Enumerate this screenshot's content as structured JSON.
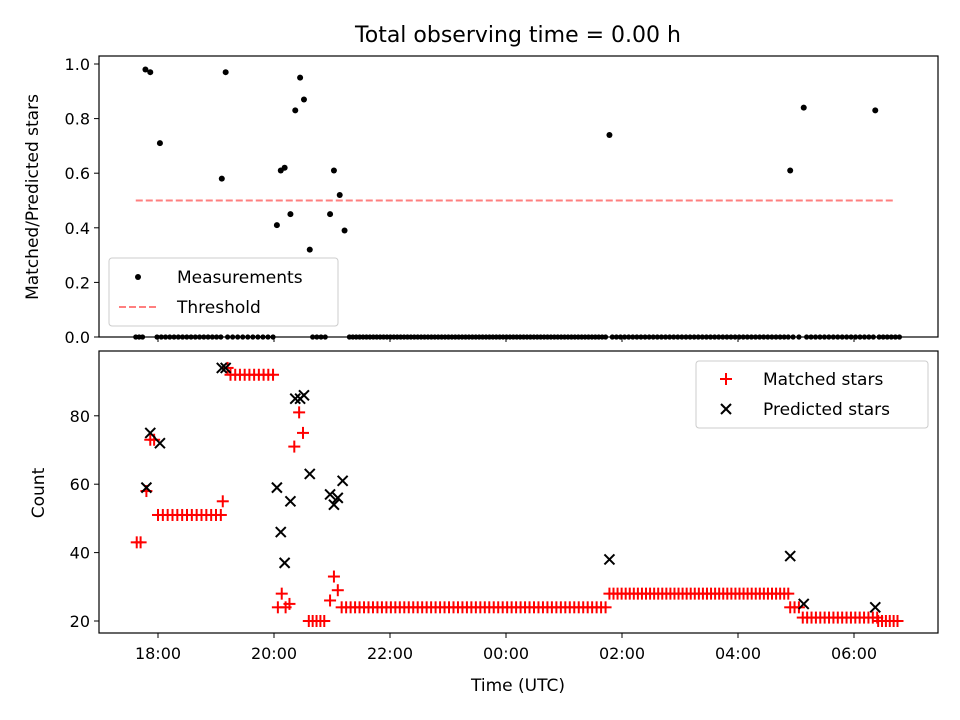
{
  "title": "Total observing time = 0.00 h",
  "colors": {
    "measurement": "#000000",
    "threshold": "#ff7f7f",
    "matched": "#ff0000",
    "predicted": "#000000"
  },
  "chart_data": [
    {
      "type": "scatter",
      "ylabel": "Matched/Predicted stars",
      "ylim": [
        0.0,
        1.04
      ],
      "yticks": [
        "0.0",
        "0.2",
        "0.4",
        "0.6",
        "0.8",
        "1.0"
      ],
      "legend_placement": "lower-left",
      "series": [
        {
          "name": "Measurements",
          "marker": "dot",
          "points": [
            [
              "17:47",
              0.98
            ],
            [
              "17:52",
              0.97
            ],
            [
              "18:02",
              0.71
            ],
            [
              "19:06",
              0.58
            ],
            [
              "19:10",
              0.97
            ],
            [
              "20:03",
              0.41
            ],
            [
              "20:07",
              0.61
            ],
            [
              "20:11",
              0.62
            ],
            [
              "20:17",
              0.45
            ],
            [
              "20:22",
              0.83
            ],
            [
              "20:27",
              0.95
            ],
            [
              "20:31",
              0.87
            ],
            [
              "20:37",
              0.32
            ],
            [
              "20:58",
              0.45
            ],
            [
              "21:02",
              0.61
            ],
            [
              "21:08",
              0.52
            ],
            [
              "21:13",
              0.39
            ],
            [
              "01:47",
              0.74
            ],
            [
              "04:54",
              0.61
            ],
            [
              "05:08",
              0.84
            ],
            [
              "06:22",
              0.83
            ]
          ],
          "zero_runs": [
            [
              "17:37",
              "17:44",
              3
            ],
            [
              "17:59",
              "19:05",
              16
            ],
            [
              "19:12",
              "19:59",
              10
            ],
            [
              "20:40",
              "20:53",
              4
            ],
            [
              "21:18",
              "01:43",
              76
            ],
            [
              "01:50",
              "04:52",
              44
            ],
            [
              "04:57",
              "05:03",
              2
            ],
            [
              "05:11",
              "06:20",
              16
            ],
            [
              "06:26",
              "06:47",
              6
            ]
          ]
        },
        {
          "name": "Threshold",
          "style": "dashed",
          "x": [
            "17:37",
            "06:42"
          ],
          "value": 0.5
        }
      ]
    },
    {
      "type": "scatter",
      "ylabel": "Count",
      "xlabel": "Time (UTC)",
      "ylim": [
        16,
        97
      ],
      "yticks": [
        "20",
        "40",
        "60",
        "80"
      ],
      "xticks": [
        "18:00",
        "20:00",
        "22:00",
        "00:00",
        "02:00",
        "04:00",
        "06:00"
      ],
      "legend_placement": "upper-right",
      "series": [
        {
          "name": "Matched stars",
          "marker": "+",
          "points": [
            [
              "17:38",
              43
            ],
            [
              "17:42",
              43
            ],
            [
              "17:48",
              58
            ],
            [
              "17:52",
              73
            ],
            [
              "17:56",
              73
            ],
            [
              "19:07",
              55
            ],
            [
              "19:12",
              94
            ],
            [
              "20:04",
              24
            ],
            [
              "20:08",
              28
            ],
            [
              "20:12",
              24
            ],
            [
              "20:16",
              25
            ],
            [
              "20:21",
              71
            ],
            [
              "20:26",
              81
            ],
            [
              "20:30",
              75
            ],
            [
              "20:58",
              26
            ],
            [
              "21:02",
              33
            ],
            [
              "21:06",
              29
            ]
          ],
          "runs": [
            [
              "18:00",
              "19:05",
              51,
              14
            ],
            [
              "19:15",
              "19:59",
              92,
              10
            ],
            [
              "20:36",
              "20:52",
              20,
              5
            ],
            [
              "21:10",
              "01:43",
              24,
              60
            ],
            [
              "01:47",
              "04:52",
              28,
              45
            ],
            [
              "04:54",
              "05:03",
              24,
              3
            ],
            [
              "05:07",
              "06:24",
              21,
              18
            ],
            [
              "06:25",
              "06:45",
              20,
              6
            ]
          ]
        },
        {
          "name": "Predicted stars",
          "marker": "x",
          "points": [
            [
              "17:48",
              59
            ],
            [
              "17:52",
              75
            ],
            [
              "18:02",
              72
            ],
            [
              "19:06",
              94
            ],
            [
              "19:10",
              94
            ],
            [
              "20:03",
              59
            ],
            [
              "20:07",
              46
            ],
            [
              "20:11",
              37
            ],
            [
              "20:17",
              55
            ],
            [
              "20:22",
              85
            ],
            [
              "20:27",
              85
            ],
            [
              "20:31",
              86
            ],
            [
              "20:37",
              63
            ],
            [
              "20:58",
              57
            ],
            [
              "21:02",
              54
            ],
            [
              "21:06",
              56
            ],
            [
              "21:11",
              61
            ],
            [
              "01:47",
              38
            ],
            [
              "04:54",
              39
            ],
            [
              "05:08",
              25
            ],
            [
              "06:22",
              24
            ]
          ]
        }
      ]
    }
  ]
}
